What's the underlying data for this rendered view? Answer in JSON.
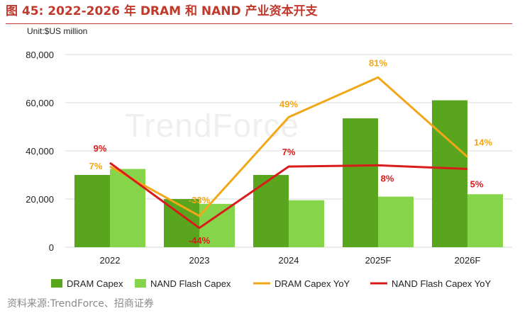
{
  "header": {
    "title": "图 45:  2022-2026 年 DRAM 和 NAND 产业资本开支",
    "unit": "Unit:$US million"
  },
  "watermark": "TrendForce",
  "source": "资料来源:TrendForce、招商证券",
  "colors": {
    "dram_bar": "#5aa51e",
    "nand_bar": "#86d44a",
    "dram_line": "#f0a818",
    "nand_line": "#d81b1b",
    "title": "#c0392b"
  },
  "chart_data": {
    "type": "bar+line",
    "title": "2022-2026 年 DRAM 和 NAND 产业资本开支",
    "unit": "Unit:$US million",
    "categories": [
      "2022",
      "2023",
      "2024",
      "2025F",
      "2026F"
    ],
    "ylim": [
      0,
      80000
    ],
    "yticks": [
      "0",
      "20,000",
      "40,000",
      "60,000",
      "80,000"
    ],
    "ytick_values": [
      0,
      20000,
      40000,
      60000,
      80000
    ],
    "bar_series": [
      {
        "name": "DRAM Capex",
        "values": [
          30000,
          20000,
          30000,
          53500,
          61000
        ]
      },
      {
        "name": "NAND Flash Capex",
        "values": [
          32500,
          18000,
          19500,
          21000,
          22000
        ]
      }
    ],
    "line_series": [
      {
        "name": "DRAM Capex YoY",
        "labels": [
          "7%",
          "-33%",
          "49%",
          "81%",
          "14%"
        ],
        "plot_values": [
          33500,
          13000,
          54000,
          70500,
          37500
        ]
      },
      {
        "name": "NAND Flash Capex YoY",
        "labels": [
          "9%",
          "-44%",
          "7%",
          "8%",
          "5%"
        ],
        "plot_values": [
          35000,
          8000,
          33500,
          34000,
          32500
        ]
      }
    ],
    "legend": [
      "DRAM Capex",
      "NAND Flash Capex",
      "DRAM Capex YoY",
      "NAND Flash Capex YoY"
    ],
    "legend_position": "bottom",
    "grid": true
  }
}
